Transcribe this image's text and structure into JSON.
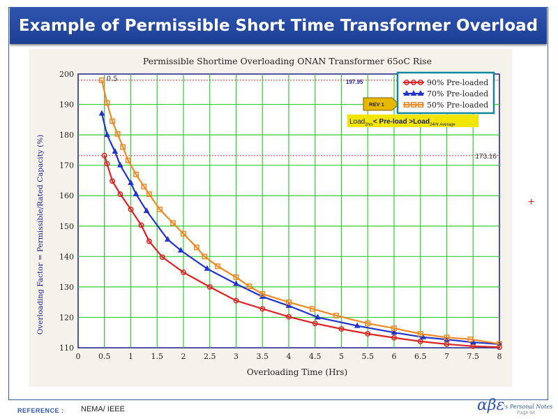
{
  "slide_title": "Example of Permissible Short Time Transformer  Overload",
  "reference": {
    "label": "REFERENCE :",
    "text": "NEMA/ IEEE"
  },
  "footer": {
    "logo": "αβε",
    "logo_tail": "'s Personal Notes",
    "page": "Page  64"
  },
  "plus_mark": "+",
  "colors": {
    "series90": "#dd2222",
    "series70": "#2233cc",
    "series50": "#ee8822",
    "grid": "#33cc33",
    "ref_line": "#cc3333",
    "title_bar": "#2448a0"
  },
  "chart_data": {
    "type": "line",
    "title": "Permissible Shortime Overloading ONAN Transformer 65oC Rise",
    "xlabel": "Overloading Time (Hrs)",
    "ylabel": "Overloading Factor = Permissible/Rated Capacity (%)",
    "xlim": [
      0,
      8
    ],
    "ylim": [
      110,
      200
    ],
    "xticks": [
      0,
      0.5,
      1,
      1.5,
      2,
      2.5,
      3,
      3.5,
      4,
      4.5,
      5,
      5.5,
      6,
      6.5,
      7,
      7.5,
      8
    ],
    "xtick_labels": [
      "0",
      "0.5",
      "1",
      "1.5",
      "2",
      "2.5",
      "3",
      "3.5",
      "4",
      "4.5",
      "5",
      "5.5",
      "6",
      "6.5",
      "7",
      "7.5",
      "8"
    ],
    "yticks": [
      110,
      120,
      130,
      140,
      150,
      160,
      170,
      180,
      190,
      200
    ],
    "ytick_labels": [
      "110",
      "120",
      "130",
      "140",
      "150",
      "160",
      "170",
      "180",
      "190",
      "200"
    ],
    "grid": true,
    "series": [
      {
        "name": "90% Pre-loaded",
        "marker": "circle",
        "x": [
          0.5,
          0.55,
          0.65,
          0.8,
          1.0,
          1.2,
          1.35,
          1.6,
          2.0,
          2.5,
          3.0,
          3.5,
          4.0,
          4.5,
          5.0,
          5.5,
          6.0,
          6.5,
          7.0,
          7.5,
          8.0
        ],
        "y": [
          173.2,
          170.5,
          164.8,
          160.5,
          155.5,
          150.3,
          145.0,
          139.8,
          134.8,
          130.0,
          125.5,
          122.8,
          120.2,
          118.0,
          116.2,
          114.6,
          113.3,
          112.1,
          111.2,
          110.5,
          110.2
        ]
      },
      {
        "name": "70% Pre-loaded",
        "marker": "triangle",
        "x": [
          0.45,
          0.55,
          0.7,
          0.8,
          1.0,
          1.1,
          1.3,
          1.7,
          1.95,
          2.45,
          3.0,
          3.5,
          4.0,
          4.55,
          5.3,
          6.0,
          6.55,
          7.0,
          7.5,
          8.0
        ],
        "y": [
          187.0,
          180.0,
          174.5,
          170.0,
          164.2,
          160.5,
          155.0,
          145.6,
          142.0,
          136.0,
          131.0,
          126.8,
          123.8,
          120.0,
          117.2,
          115.0,
          113.5,
          112.7,
          111.8,
          111.2
        ]
      },
      {
        "name": "50% Pre-loaded",
        "marker": "square",
        "x": [
          0.45,
          0.55,
          0.65,
          0.75,
          0.85,
          0.95,
          1.1,
          1.25,
          1.35,
          1.55,
          1.8,
          2.0,
          2.25,
          2.4,
          2.65,
          3.0,
          3.25,
          3.5,
          4.0,
          4.45,
          4.9,
          5.5,
          6.0,
          6.5,
          7.0,
          7.45,
          8.0
        ],
        "y": [
          197.95,
          190.5,
          184.5,
          180.3,
          176.0,
          171.6,
          167.0,
          163.0,
          160.5,
          155.5,
          151.0,
          147.5,
          143.0,
          140.0,
          136.8,
          133.2,
          130.2,
          127.7,
          125.0,
          122.8,
          120.6,
          118.0,
          116.4,
          114.6,
          113.4,
          112.8,
          111.3
        ]
      }
    ],
    "reference_lines": [
      {
        "y": 197.95,
        "label": "197.95"
      },
      {
        "y": 173.16,
        "label": "173.16"
      }
    ],
    "vertical_marker": {
      "x": 0.5,
      "label": "0.5"
    },
    "annotations": {
      "rev": "REV 1",
      "load_base": "Load",
      "load_sub1": "2hrs",
      "load_mid": "< Pre-load >Load",
      "load_sub2": "24Hr Average"
    },
    "legend_position": "top-right"
  }
}
